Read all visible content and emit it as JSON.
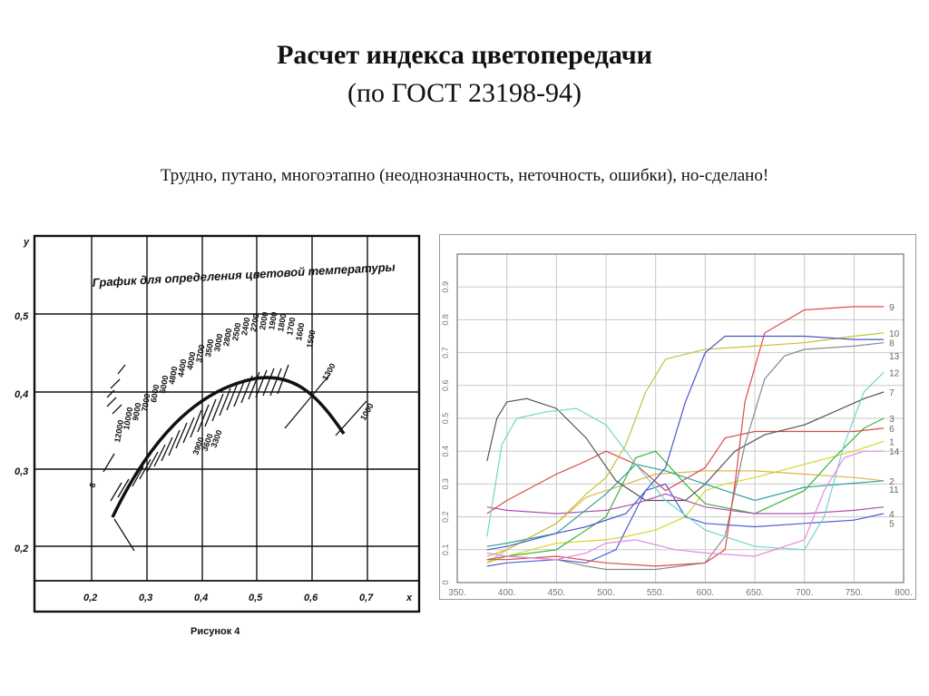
{
  "slide": {
    "title": "Расчет индекса цветопередачи",
    "subtitle": "(по ГОСТ 23198-94)",
    "note": "Трудно, путано, многоэтапно (неоднозначность, неточность, ошибки), но-сделано!"
  },
  "left_chart": {
    "heading": "График для определения цветовой температуры",
    "caption": "Рисунок 4",
    "x_label": "x",
    "y_label": "y",
    "x_ticks": [
      "0,2",
      "0,3",
      "0,4",
      "0,5",
      "0,6",
      "0,7"
    ],
    "y_ticks": [
      "0,5",
      "0,4",
      "0,3",
      "0,2"
    ],
    "temperature_labels": [
      "12000",
      "10000",
      "9000",
      "7000",
      "6000",
      "5000",
      "4800",
      "4400",
      "4000",
      "3700",
      "3500",
      "3000",
      "2800",
      "2500",
      "2400",
      "2200",
      "2000",
      "1900",
      "1800",
      "1700",
      "1600",
      "1500",
      "1300",
      "1000",
      "3900",
      "3600",
      "3300",
      "8"
    ]
  },
  "chart_data": {
    "type": "line",
    "xlim": [
      350,
      800
    ],
    "ylim": [
      0,
      1
    ],
    "grid": true,
    "legend": "right-end labels",
    "x_ticks": [
      "350.",
      "400.",
      "450.",
      "500.",
      "550.",
      "600.",
      "650.",
      "700.",
      "750.",
      "800."
    ],
    "y_ticks": [
      "0",
      "0.1",
      "0.2",
      "0.3",
      "0.4",
      "0.5",
      "0.6",
      "0.7",
      "0.8",
      "0.9"
    ],
    "series": [
      {
        "name": "1",
        "color": "#d6d62c",
        "points": [
          [
            380,
            0.06
          ],
          [
            400,
            0.08
          ],
          [
            450,
            0.12
          ],
          [
            500,
            0.13
          ],
          [
            520,
            0.14
          ],
          [
            550,
            0.16
          ],
          [
            580,
            0.2
          ],
          [
            600,
            0.28
          ],
          [
            620,
            0.3
          ],
          [
            650,
            0.32
          ],
          [
            700,
            0.36
          ],
          [
            750,
            0.4
          ],
          [
            780,
            0.43
          ]
        ]
      },
      {
        "name": "2",
        "color": "#d8b84a",
        "points": [
          [
            380,
            0.06
          ],
          [
            400,
            0.1
          ],
          [
            450,
            0.18
          ],
          [
            480,
            0.26
          ],
          [
            520,
            0.3
          ],
          [
            550,
            0.33
          ],
          [
            600,
            0.34
          ],
          [
            650,
            0.34
          ],
          [
            700,
            0.33
          ],
          [
            750,
            0.32
          ],
          [
            780,
            0.31
          ]
        ]
      },
      {
        "name": "3",
        "color": "#3bb33b",
        "points": [
          [
            380,
            0.07
          ],
          [
            400,
            0.08
          ],
          [
            450,
            0.1
          ],
          [
            500,
            0.2
          ],
          [
            530,
            0.38
          ],
          [
            550,
            0.4
          ],
          [
            580,
            0.3
          ],
          [
            600,
            0.24
          ],
          [
            650,
            0.21
          ],
          [
            700,
            0.28
          ],
          [
            730,
            0.38
          ],
          [
            760,
            0.47
          ],
          [
            780,
            0.5
          ]
        ]
      },
      {
        "name": "4",
        "color": "#4e5dcf",
        "points": [
          [
            380,
            0.05
          ],
          [
            400,
            0.06
          ],
          [
            450,
            0.07
          ],
          [
            480,
            0.06
          ],
          [
            510,
            0.1
          ],
          [
            540,
            0.28
          ],
          [
            560,
            0.3
          ],
          [
            580,
            0.2
          ],
          [
            600,
            0.18
          ],
          [
            650,
            0.17
          ],
          [
            700,
            0.18
          ],
          [
            750,
            0.19
          ],
          [
            780,
            0.21
          ]
        ]
      },
      {
        "name": "5",
        "color": "#b24fb2",
        "points": [
          [
            380,
            0.23
          ],
          [
            400,
            0.22
          ],
          [
            450,
            0.21
          ],
          [
            500,
            0.22
          ],
          [
            530,
            0.24
          ],
          [
            560,
            0.27
          ],
          [
            600,
            0.23
          ],
          [
            650,
            0.21
          ],
          [
            700,
            0.21
          ],
          [
            750,
            0.22
          ],
          [
            780,
            0.23
          ]
        ]
      },
      {
        "name": "6",
        "color": "#d84b4b",
        "points": [
          [
            380,
            0.21
          ],
          [
            400,
            0.25
          ],
          [
            450,
            0.33
          ],
          [
            480,
            0.37
          ],
          [
            500,
            0.4
          ],
          [
            530,
            0.36
          ],
          [
            560,
            0.28
          ],
          [
            600,
            0.35
          ],
          [
            620,
            0.44
          ],
          [
            650,
            0.46
          ],
          [
            700,
            0.46
          ],
          [
            750,
            0.46
          ],
          [
            780,
            0.47
          ]
        ]
      },
      {
        "name": "7",
        "color": "#555555",
        "points": [
          [
            380,
            0.37
          ],
          [
            390,
            0.5
          ],
          [
            400,
            0.55
          ],
          [
            420,
            0.56
          ],
          [
            450,
            0.53
          ],
          [
            480,
            0.44
          ],
          [
            510,
            0.31
          ],
          [
            540,
            0.25
          ],
          [
            560,
            0.25
          ],
          [
            580,
            0.25
          ],
          [
            600,
            0.3
          ],
          [
            630,
            0.4
          ],
          [
            660,
            0.45
          ],
          [
            700,
            0.48
          ],
          [
            730,
            0.52
          ],
          [
            760,
            0.56
          ],
          [
            780,
            0.58
          ]
        ]
      },
      {
        "name": "8",
        "color": "#8a8a8a",
        "points": [
          [
            380,
            0.07
          ],
          [
            400,
            0.08
          ],
          [
            450,
            0.07
          ],
          [
            480,
            0.05
          ],
          [
            500,
            0.04
          ],
          [
            530,
            0.04
          ],
          [
            550,
            0.04
          ],
          [
            600,
            0.06
          ],
          [
            620,
            0.14
          ],
          [
            640,
            0.42
          ],
          [
            660,
            0.62
          ],
          [
            680,
            0.69
          ],
          [
            700,
            0.71
          ],
          [
            750,
            0.72
          ],
          [
            780,
            0.73
          ]
        ]
      },
      {
        "name": "9",
        "color": "#e04a4a",
        "points": [
          [
            380,
            0.07
          ],
          [
            400,
            0.07
          ],
          [
            450,
            0.08
          ],
          [
            500,
            0.06
          ],
          [
            550,
            0.05
          ],
          [
            600,
            0.06
          ],
          [
            620,
            0.1
          ],
          [
            630,
            0.3
          ],
          [
            640,
            0.55
          ],
          [
            660,
            0.76
          ],
          [
            700,
            0.83
          ],
          [
            750,
            0.84
          ],
          [
            780,
            0.84
          ]
        ]
      },
      {
        "name": "10",
        "color": "#c4c43a",
        "points": [
          [
            380,
            0.08
          ],
          [
            400,
            0.1
          ],
          [
            450,
            0.18
          ],
          [
            480,
            0.27
          ],
          [
            500,
            0.32
          ],
          [
            520,
            0.42
          ],
          [
            540,
            0.58
          ],
          [
            560,
            0.68
          ],
          [
            600,
            0.71
          ],
          [
            650,
            0.72
          ],
          [
            700,
            0.73
          ],
          [
            750,
            0.75
          ],
          [
            780,
            0.76
          ]
        ]
      },
      {
        "name": "11",
        "color": "#2fa59a",
        "points": [
          [
            380,
            0.11
          ],
          [
            400,
            0.12
          ],
          [
            450,
            0.15
          ],
          [
            500,
            0.27
          ],
          [
            530,
            0.36
          ],
          [
            560,
            0.34
          ],
          [
            600,
            0.3
          ],
          [
            650,
            0.25
          ],
          [
            700,
            0.29
          ],
          [
            740,
            0.3
          ],
          [
            780,
            0.31
          ]
        ]
      },
      {
        "name": "12",
        "color": "#6fd6c8",
        "points": [
          [
            380,
            0.14
          ],
          [
            395,
            0.42
          ],
          [
            410,
            0.5
          ],
          [
            440,
            0.52
          ],
          [
            470,
            0.53
          ],
          [
            500,
            0.48
          ],
          [
            530,
            0.36
          ],
          [
            560,
            0.25
          ],
          [
            600,
            0.16
          ],
          [
            650,
            0.11
          ],
          [
            700,
            0.1
          ],
          [
            720,
            0.2
          ],
          [
            740,
            0.42
          ],
          [
            760,
            0.58
          ],
          [
            780,
            0.64
          ]
        ]
      },
      {
        "name": "13",
        "color": "#4a56c8",
        "points": [
          [
            380,
            0.1
          ],
          [
            400,
            0.11
          ],
          [
            450,
            0.15
          ],
          [
            480,
            0.17
          ],
          [
            520,
            0.21
          ],
          [
            560,
            0.35
          ],
          [
            580,
            0.55
          ],
          [
            600,
            0.7
          ],
          [
            620,
            0.75
          ],
          [
            650,
            0.75
          ],
          [
            700,
            0.75
          ],
          [
            750,
            0.74
          ],
          [
            780,
            0.74
          ]
        ]
      },
      {
        "name": "14",
        "color": "#e38ae3",
        "points": [
          [
            380,
            0.09
          ],
          [
            400,
            0.08
          ],
          [
            450,
            0.07
          ],
          [
            480,
            0.09
          ],
          [
            500,
            0.12
          ],
          [
            530,
            0.13
          ],
          [
            570,
            0.1
          ],
          [
            600,
            0.09
          ],
          [
            650,
            0.08
          ],
          [
            700,
            0.13
          ],
          [
            720,
            0.28
          ],
          [
            740,
            0.38
          ],
          [
            760,
            0.4
          ],
          [
            780,
            0.4
          ]
        ]
      }
    ]
  },
  "colors": {
    "left_chart_ink": "#111111",
    "right_chart_grid": "#c8c8c8",
    "right_chart_axis": "#777777"
  }
}
